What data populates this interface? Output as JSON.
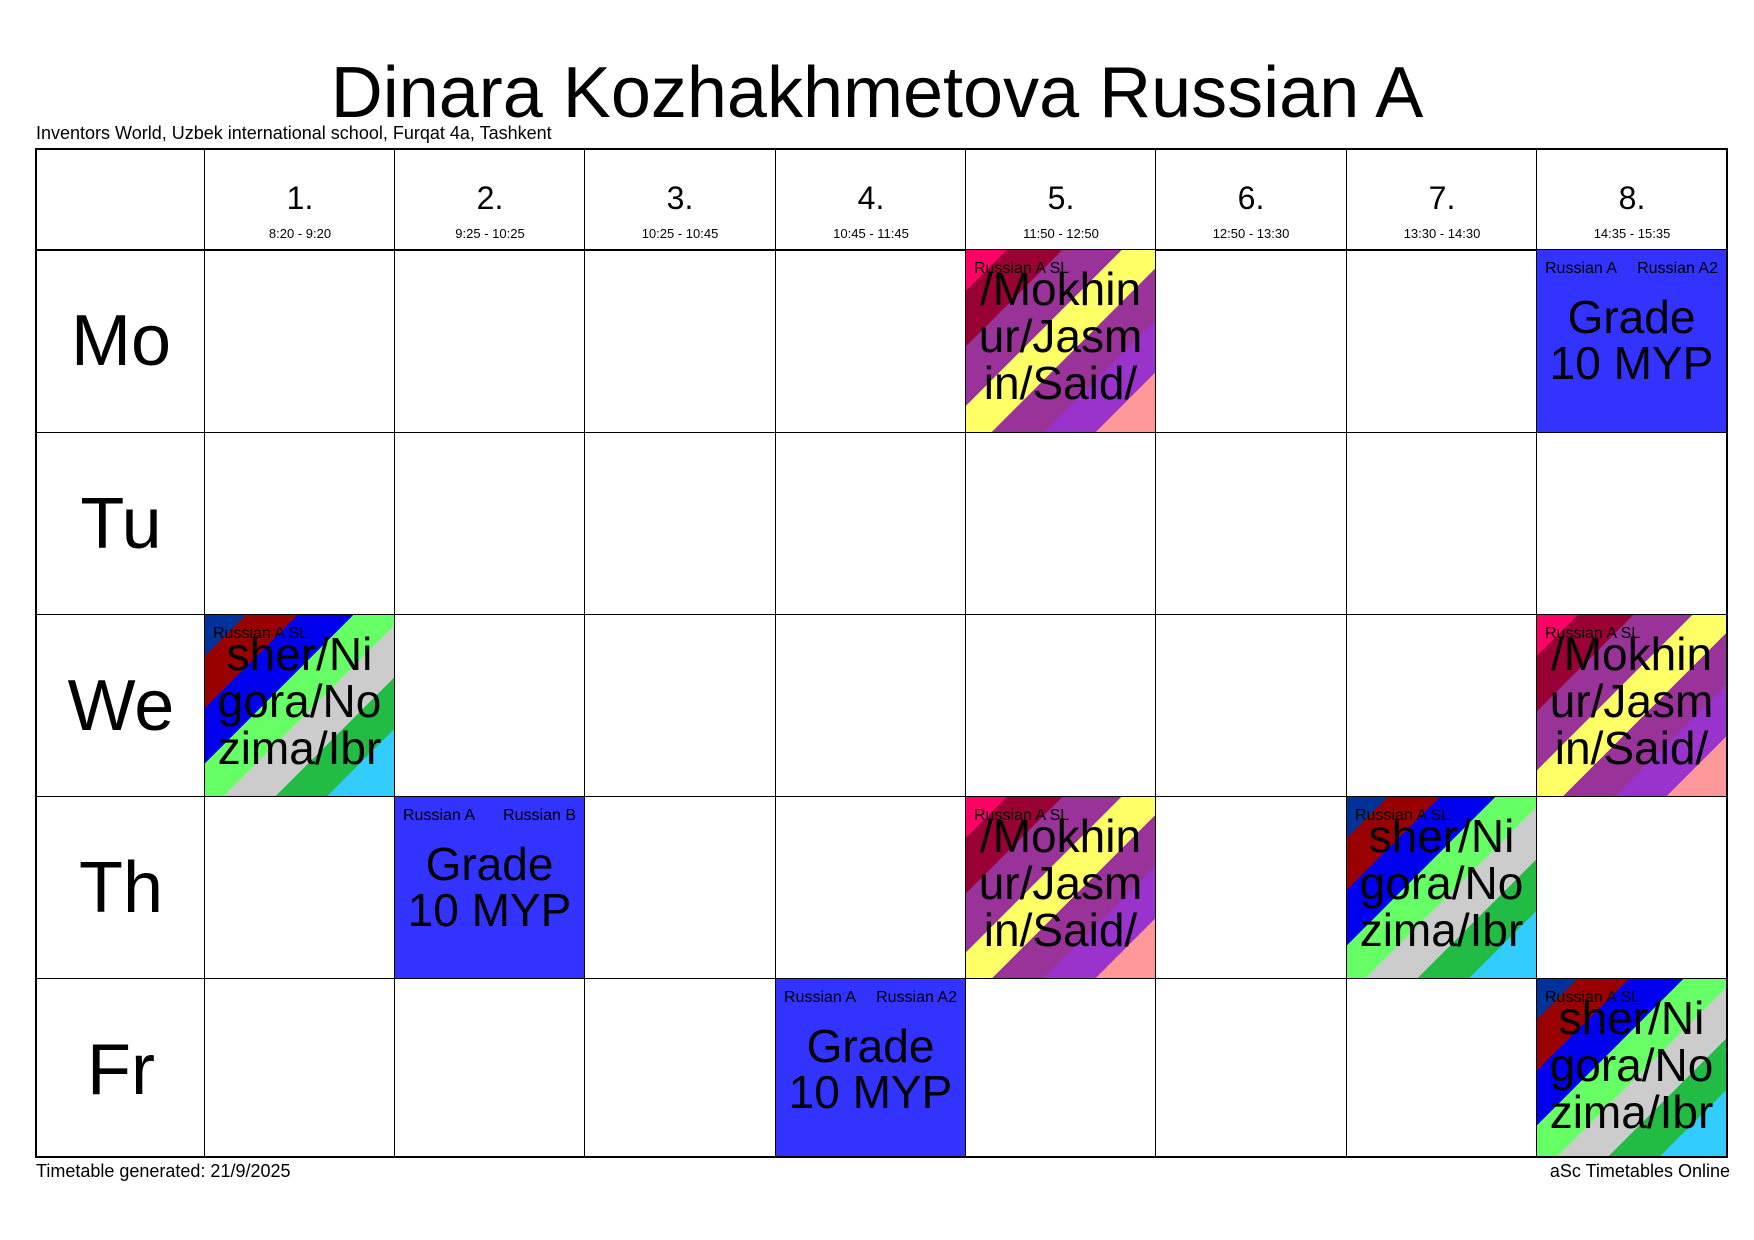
{
  "header": {
    "title": "Dinara Kozhakhmetova Russian A",
    "subtitle": "Inventors World, Uzbek international school, Furqat 4a, Tashkent"
  },
  "footer": {
    "generated": "Timetable generated: 21/9/2025",
    "brand": "aSc Timetables Online"
  },
  "periods": [
    {
      "num": "1.",
      "time": "8:20 - 9:20"
    },
    {
      "num": "2.",
      "time": "9:25 - 10:25"
    },
    {
      "num": "3.",
      "time": "10:25 - 10:45"
    },
    {
      "num": "4.",
      "time": "10:45 - 11:45"
    },
    {
      "num": "5.",
      "time": "11:50 - 12:50"
    },
    {
      "num": "6.",
      "time": "12:50 - 13:30"
    },
    {
      "num": "7.",
      "time": "13:30 - 14:30"
    },
    {
      "num": "8.",
      "time": "14:35 - 15:35"
    }
  ],
  "days": [
    "Mo",
    "Tu",
    "We",
    "Th",
    "Fr"
  ],
  "lessons": {
    "mo_p5": {
      "subject": "Russian A SL",
      "students": "/Mokhinur/Jasmin/Said/"
    },
    "mo_p8": {
      "subject": "Russian A",
      "subject2": "Russian A2",
      "class": "Grade 10 MYP"
    },
    "we_p1": {
      "subject": "Russian A SL",
      "students": "sher/Nigora/Nozima/Ibr"
    },
    "we_p8": {
      "subject": "Russian A SL",
      "students": "/Mokhinur/Jasmin/Said/"
    },
    "th_p2": {
      "subject": "Russian A",
      "subject2": "Russian B",
      "class": "Grade 10 MYP"
    },
    "th_p5": {
      "subject": "Russian A SL",
      "students": "/Mokhinur/Jasmin/Said/"
    },
    "th_p7": {
      "subject": "Russian A SL",
      "students": "sher/Nigora/Nozima/Ibr"
    },
    "fr_p4": {
      "subject": "Russian A",
      "subject2": "Russian A2",
      "class": "Grade 10 MYP"
    },
    "fr_p8": {
      "subject": "Russian A SL",
      "students": "sher/Nigora/Nozima/Ibr"
    }
  },
  "colors": {
    "class_card": "#3333ff",
    "border": "#000000"
  }
}
